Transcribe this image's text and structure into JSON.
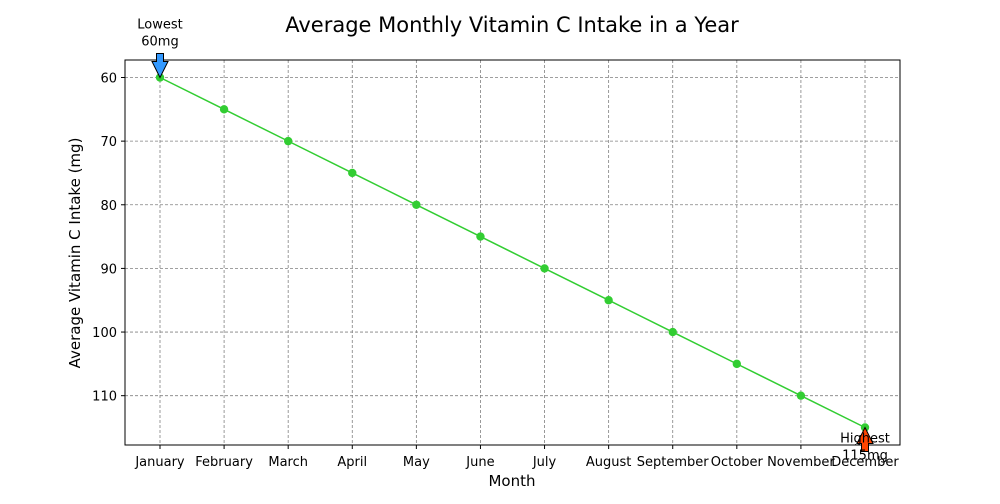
{
  "chart_data": {
    "type": "line",
    "title": "Average Monthly Vitamin C Intake in a Year",
    "xlabel": "Month",
    "ylabel": "Average Vitamin C Intake (mg)",
    "categories": [
      "January",
      "February",
      "March",
      "April",
      "May",
      "June",
      "July",
      "August",
      "September",
      "October",
      "November",
      "December"
    ],
    "series": [
      {
        "values": [
          60,
          65,
          70,
          75,
          80,
          85,
          90,
          95,
          100,
          105,
          110,
          115
        ],
        "color": "#32cd32"
      }
    ],
    "ylim": [
      117.75,
      57.25
    ],
    "y_inverted": true,
    "yticks": [
      60,
      70,
      80,
      90,
      100,
      110
    ],
    "grid": true,
    "grid_color": "#808080",
    "annotations": [
      {
        "label_lines": [
          "Lowest",
          "60mg"
        ],
        "category": "January",
        "value": 60,
        "arrow_color": "#3399ff",
        "placement": "above"
      },
      {
        "label_lines": [
          "Highest",
          "115mg"
        ],
        "category": "December",
        "value": 115,
        "arrow_color": "#ff4500",
        "placement": "below"
      }
    ]
  }
}
